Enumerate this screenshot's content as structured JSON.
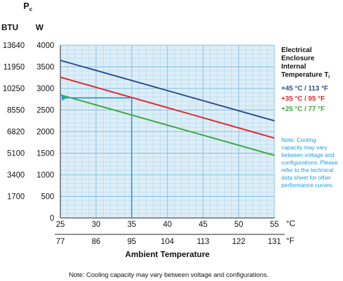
{
  "chart_data": {
    "type": "line",
    "axis_title_main": "P",
    "axis_title_sub": "c",
    "btu_header": "BTU",
    "watt_header": "W",
    "xlabel": "Ambient Temperature",
    "x_unit_c": "°C",
    "x_unit_f": "°F",
    "x_ticks_c": [
      "25",
      "30",
      "35",
      "40",
      "45",
      "50",
      "55"
    ],
    "x_ticks_f": [
      "77",
      "86",
      "95",
      "104",
      "113",
      "122",
      "131"
    ],
    "y_ticks_w": [
      "0",
      "500",
      "1000",
      "1500",
      "2000",
      "2500",
      "3000",
      "3500",
      "4000"
    ],
    "y_ticks_btu": [
      "1700",
      "3400",
      "5100",
      "6820",
      "8550",
      "10250",
      "11950",
      "13640"
    ],
    "xlim": [
      25,
      55
    ],
    "ylim": [
      0,
      4000
    ],
    "grid": true,
    "legend_title": [
      "Electrical",
      "Enclosure",
      "Internal",
      "Temperature T"
    ],
    "legend_title_sub": "i",
    "series": [
      {
        "name": "+45 °C / 113 °F",
        "color": "#2e4d8f",
        "x": [
          25,
          55
        ],
        "y": [
          3650,
          2250
        ]
      },
      {
        "name": "+35 °C / 95 °F",
        "color": "#e3262b",
        "x": [
          25,
          55
        ],
        "y": [
          3260,
          1850
        ]
      },
      {
        "name": "+25 °C / 77 °F",
        "color": "#3aaa35",
        "x": [
          25,
          55
        ],
        "y": [
          2850,
          1450
        ]
      }
    ],
    "reading_example": {
      "x": 35,
      "y": 2780,
      "color": "#1b9ddb"
    },
    "side_note": [
      "Note: Cooling",
      "capacity may vary",
      "between voltage and",
      "configurations. Please",
      "refer to the technical",
      "data sheet for other",
      "performance curves."
    ],
    "side_note_color": "#1b9ddb",
    "footnote": "Note: Cooling capacity may vary between voltage and configurations."
  }
}
